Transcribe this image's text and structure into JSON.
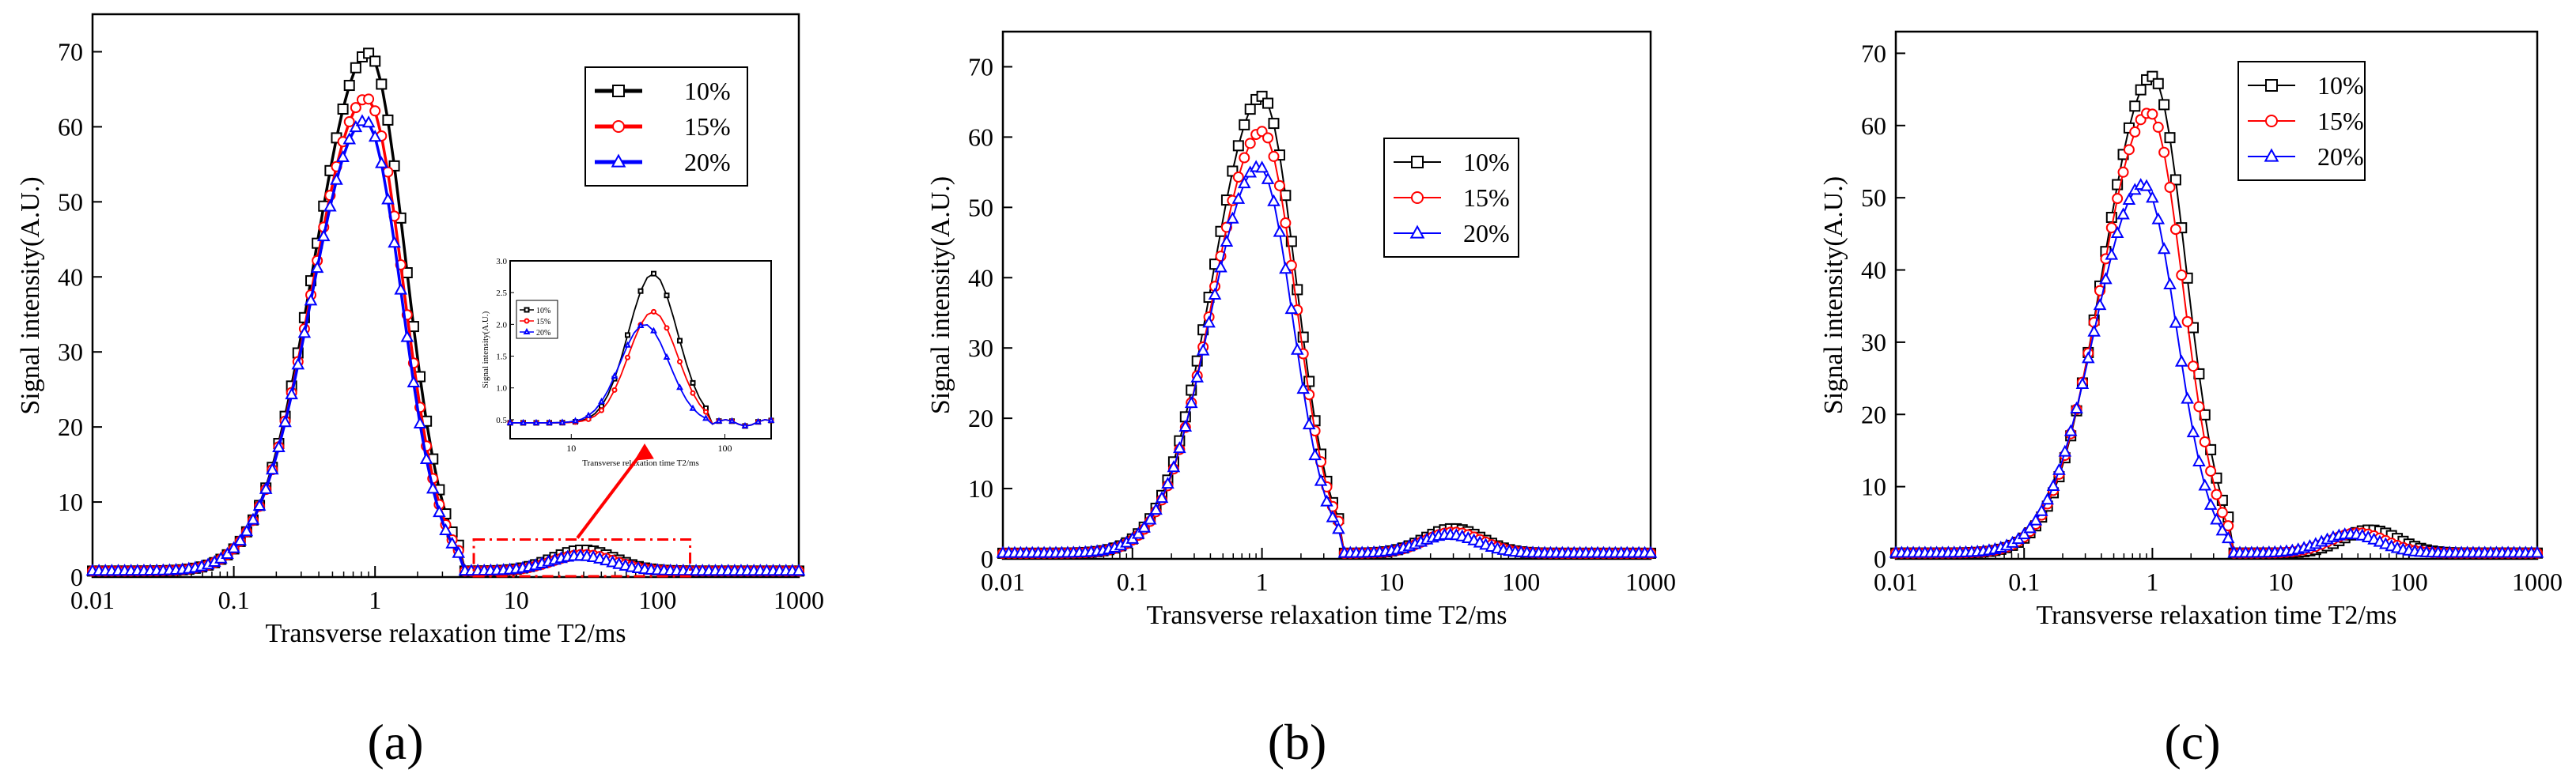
{
  "figure": {
    "captions": [
      "(a)",
      "(b)",
      "(c)"
    ]
  },
  "colors": {
    "10%": "#000000",
    "15%": "#ff0000",
    "20%": "#0000ff"
  },
  "chart_data": [
    {
      "type": "line",
      "panel": "a",
      "xlabel": "Transverse relaxation time T2/ms",
      "ylabel": "Signal intensity(A.U.)",
      "x_scale": "log",
      "xlim": [
        0.01,
        1000
      ],
      "ylim": [
        0,
        75
      ],
      "xticks": [
        "0.01",
        "0.1",
        "1",
        "10",
        "100",
        "1000"
      ],
      "yticks": [
        "0",
        "10",
        "20",
        "30",
        "40",
        "50",
        "60",
        "70"
      ],
      "legend": "top-right",
      "series": [
        {
          "name": "10%",
          "marker": "square",
          "line_bold": true,
          "peak1": {
            "x": 0.9,
            "y": 69
          },
          "peak2": {
            "x": 30,
            "y": 2.8
          }
        },
        {
          "name": "15%",
          "marker": "circle",
          "line_bold": true,
          "peak1": {
            "x": 0.87,
            "y": 63
          },
          "peak2": {
            "x": 30,
            "y": 2.2
          }
        },
        {
          "name": "20%",
          "marker": "triangle",
          "line_bold": true,
          "peak1": {
            "x": 0.85,
            "y": 60
          },
          "peak2": {
            "x": 28,
            "y": 2.0
          }
        }
      ],
      "inset": {
        "xlabel": "Transverse relaxation time T2/ms",
        "ylabel": "Signal intensity(A.U.)",
        "xlim": [
          4,
          200
        ],
        "ylim": [
          0.2,
          3.0
        ],
        "xticks": [
          "10",
          "100"
        ],
        "yticks": [
          "0.5",
          "1.0",
          "1.5",
          "2.0",
          "2.5",
          "3.0"
        ],
        "legend": [
          "10%",
          "15%",
          "20%"
        ],
        "series": [
          {
            "name": "10%",
            "peak": {
              "x": 34,
              "y": 2.8
            }
          },
          {
            "name": "15%",
            "peak": {
              "x": 34,
              "y": 2.2
            }
          },
          {
            "name": "20%",
            "peak": {
              "x": 30,
              "y": 2.0
            }
          }
        ]
      }
    },
    {
      "type": "line",
      "panel": "b",
      "xlabel": "Transverse relaxation time T2/ms",
      "ylabel": "Signal intensity(A.U.)",
      "x_scale": "log",
      "xlim": [
        0.01,
        1000
      ],
      "ylim": [
        0,
        75
      ],
      "xticks": [
        "0.01",
        "0.1",
        "1",
        "10",
        "100",
        "1000"
      ],
      "yticks": [
        "0",
        "10",
        "20",
        "30",
        "40",
        "50",
        "60",
        "70"
      ],
      "legend": "upper-middle",
      "series": [
        {
          "name": "10%",
          "marker": "square",
          "peak1": {
            "x": 1.0,
            "y": 65
          },
          "peak2": {
            "x": 30,
            "y": 3.5
          }
        },
        {
          "name": "15%",
          "marker": "circle",
          "peak1": {
            "x": 1.0,
            "y": 60
          },
          "peak2": {
            "x": 30,
            "y": 3.0
          }
        },
        {
          "name": "20%",
          "marker": "triangle",
          "peak1": {
            "x": 0.95,
            "y": 55
          },
          "peak2": {
            "x": 28,
            "y": 2.6
          }
        }
      ]
    },
    {
      "type": "line",
      "panel": "c",
      "xlabel": "Transverse relaxation time T2/ms",
      "ylabel": "Signal intensity(A.U.)",
      "x_scale": "log",
      "xlim": [
        0.01,
        1000
      ],
      "ylim": [
        0,
        73
      ],
      "xticks": [
        "0.01",
        "0.1",
        "1",
        "10",
        "100",
        "1000"
      ],
      "yticks": [
        "0",
        "10",
        "20",
        "30",
        "40",
        "50",
        "60",
        "70"
      ],
      "legend": "upper-middle",
      "series": [
        {
          "name": "10%",
          "marker": "square",
          "peak1": {
            "x": 1.0,
            "y": 66
          },
          "peak2": {
            "x": 50,
            "y": 3.2
          }
        },
        {
          "name": "15%",
          "marker": "circle",
          "peak1": {
            "x": 0.95,
            "y": 61
          },
          "peak2": {
            "x": 40,
            "y": 2.8
          }
        },
        {
          "name": "20%",
          "marker": "triangle",
          "peak1": {
            "x": 0.85,
            "y": 51
          },
          "peak2": {
            "x": 35,
            "y": 2.6
          }
        }
      ]
    }
  ]
}
